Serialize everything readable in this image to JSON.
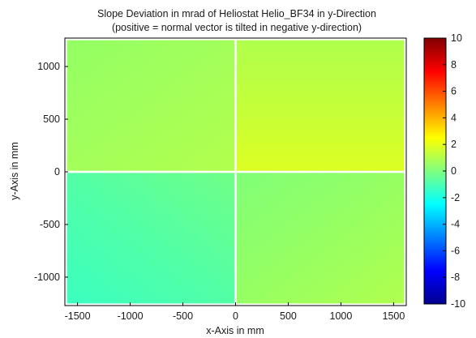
{
  "chart_data": {
    "type": "heatmap",
    "title": "Slope Deviation in mrad of Heliostat Helio_BF34 in y-Direction",
    "subtitle": "(positive = normal vector is tilted in negative y-direction)",
    "xlabel": "x-Axis in mm",
    "ylabel": "y-Axis in mm",
    "xlim": [
      -1620,
      1620
    ],
    "ylim": [
      -1270,
      1270
    ],
    "x_ticks": [
      -1500,
      -1000,
      -500,
      0,
      500,
      1000,
      1500
    ],
    "x_tick_labels": [
      "-1500",
      "-1000",
      "-500",
      "0",
      "500",
      "1000",
      "1500"
    ],
    "y_ticks": [
      1000,
      500,
      0,
      -500,
      -1000
    ],
    "y_tick_labels": [
      "1000",
      "500",
      "0",
      "-500",
      "-1000"
    ],
    "colorbar": {
      "colormap": "jet",
      "range": [
        -10,
        10
      ],
      "ticks": [
        10,
        8,
        6,
        4,
        2,
        0,
        -2,
        -4,
        -6,
        -8,
        -10
      ],
      "tick_labels": [
        "10",
        "8",
        "6",
        "4",
        "2",
        "0",
        "-2",
        "-4",
        "-6",
        "-8",
        "-10"
      ]
    },
    "facets": [
      {
        "name": "upper-left",
        "x_range": [
          -1600,
          -10
        ],
        "y_range": [
          10,
          1250
        ],
        "mean_value": 0.6
      },
      {
        "name": "upper-right",
        "x_range": [
          10,
          1600
        ],
        "y_range": [
          10,
          1250
        ],
        "mean_value": 1.8
      },
      {
        "name": "lower-left",
        "x_range": [
          -1600,
          -10
        ],
        "y_range": [
          -1250,
          -10
        ],
        "mean_value": -1.3
      },
      {
        "name": "lower-right",
        "x_range": [
          10,
          1600
        ],
        "y_range": [
          -1250,
          -10
        ],
        "mean_value": 0.4
      }
    ],
    "colors": {
      "background": "#ffffff",
      "axis": "#000000",
      "text": "#1a1a1a",
      "gap": "#ffffff"
    }
  }
}
